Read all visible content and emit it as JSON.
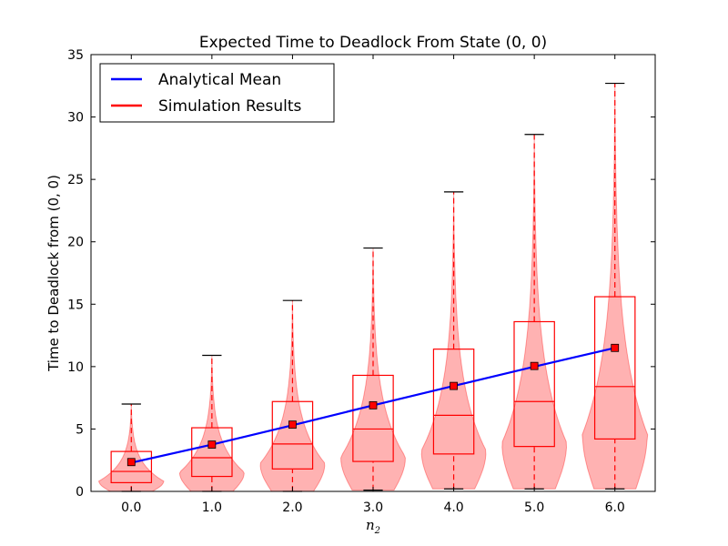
{
  "chart_data": {
    "type": "violin",
    "title": "Expected Time to Deadlock From State (0, 0)",
    "xlabel": "n",
    "xlabel_sub": "2",
    "ylabel": "Time to Deadlock from (0, 0)",
    "ylim": [
      0,
      35
    ],
    "yticks": [
      0,
      5,
      10,
      15,
      20,
      25,
      30,
      35
    ],
    "xlim": [
      -0.5,
      6.5
    ],
    "x": [
      0,
      1,
      2,
      3,
      4,
      5,
      6
    ],
    "xtick_labels": [
      "0.0",
      "1.0",
      "2.0",
      "3.0",
      "4.0",
      "5.0",
      "6.0"
    ],
    "grid": false,
    "legend": {
      "placement": "top-left",
      "entries": [
        {
          "label": "Analytical Mean",
          "color": "#0000ff"
        },
        {
          "label": "Simulation Results",
          "color": "#ff0000"
        }
      ]
    },
    "series": [
      {
        "name": "Analytical Mean",
        "color": "#0000ff",
        "values": [
          2.3,
          3.75,
          5.3,
          6.9,
          8.45,
          10.0,
          11.5
        ]
      },
      {
        "name": "Simulation Results",
        "color": "#ff0000",
        "box": [
          {
            "x": 0,
            "min": 0.0,
            "q1": 0.7,
            "median": 1.6,
            "q3": 3.2,
            "max": 7.0,
            "mean": 2.35,
            "peak": 0.8
          },
          {
            "x": 1,
            "min": 0.0,
            "q1": 1.2,
            "median": 2.7,
            "q3": 5.1,
            "max": 10.9,
            "mean": 3.75,
            "peak": 1.5
          },
          {
            "x": 2,
            "min": 0.0,
            "q1": 1.8,
            "median": 3.8,
            "q3": 7.2,
            "max": 15.3,
            "mean": 5.35,
            "peak": 2.2
          },
          {
            "x": 3,
            "min": 0.1,
            "q1": 2.4,
            "median": 5.0,
            "q3": 9.3,
            "max": 19.5,
            "mean": 6.9,
            "peak": 2.7
          },
          {
            "x": 4,
            "min": 0.2,
            "q1": 3.0,
            "median": 6.1,
            "q3": 11.4,
            "max": 24.0,
            "mean": 8.45,
            "peak": 3.2
          },
          {
            "x": 5,
            "min": 0.2,
            "q1": 3.6,
            "median": 7.2,
            "q3": 13.6,
            "max": 28.6,
            "mean": 10.05,
            "peak": 3.8
          },
          {
            "x": 6,
            "min": 0.2,
            "q1": 4.2,
            "median": 8.4,
            "q3": 15.6,
            "max": 32.7,
            "mean": 11.5,
            "peak": 4.5
          }
        ]
      }
    ]
  }
}
